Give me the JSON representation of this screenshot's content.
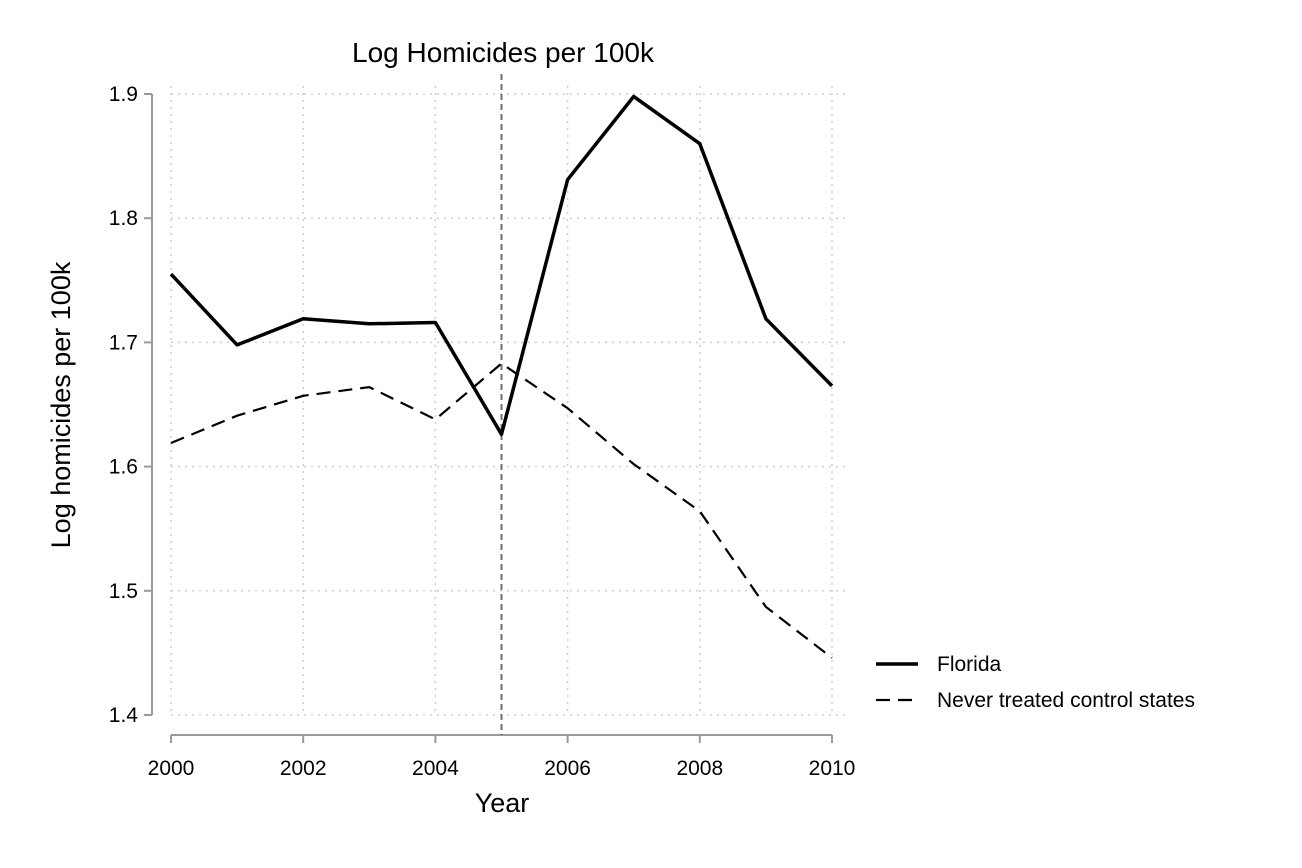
{
  "chart_data": {
    "type": "line",
    "title": "Log Homicides per 100k",
    "xlabel": "Year",
    "ylabel": "Log homicides per 100k",
    "x": [
      2000,
      2001,
      2002,
      2003,
      2004,
      2005,
      2006,
      2007,
      2008,
      2009,
      2010
    ],
    "xlim": [
      2000,
      2010
    ],
    "ylim": [
      1.4,
      1.9
    ],
    "x_ticks": [
      2000,
      2002,
      2004,
      2006,
      2008,
      2010
    ],
    "x_tick_labels": [
      "2000",
      "2002",
      "2004",
      "2006",
      "2008",
      "2010"
    ],
    "y_ticks": [
      1.4,
      1.5,
      1.6,
      1.7,
      1.8,
      1.9
    ],
    "y_tick_labels": [
      "1.4",
      "1.5",
      "1.6",
      "1.7",
      "1.8",
      "1.9"
    ],
    "grid": true,
    "reference_line": {
      "x": 2005,
      "style": "dashed"
    },
    "legend_position": "right",
    "series": [
      {
        "name": "Florida",
        "style": "solid",
        "values": [
          1.755,
          1.698,
          1.719,
          1.715,
          1.716,
          1.626,
          1.831,
          1.898,
          1.86,
          1.719,
          1.665
        ]
      },
      {
        "name": "Never treated control states",
        "style": "dashed",
        "values": [
          1.619,
          1.641,
          1.657,
          1.664,
          1.638,
          1.683,
          1.647,
          1.602,
          1.564,
          1.487,
          1.446
        ]
      }
    ]
  }
}
